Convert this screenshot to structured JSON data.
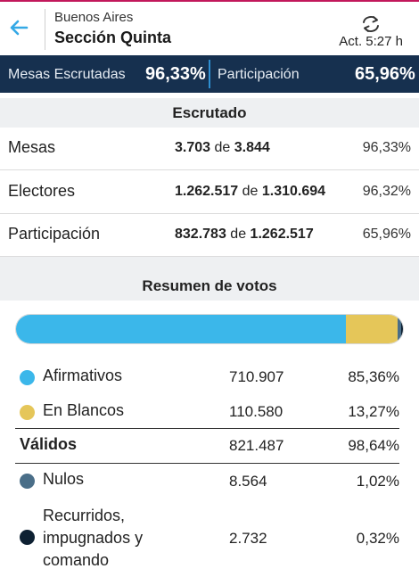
{
  "header": {
    "province": "Buenos Aires",
    "section": "Sección Quinta",
    "updated": "Act. 5:27 h"
  },
  "summary": {
    "mesas_label": "Mesas Escrutadas",
    "mesas_value": "96,33%",
    "participacion_label": "Participación",
    "participacion_value": "65,96%"
  },
  "escrutado": {
    "title": "Escrutado",
    "rows": [
      {
        "label": "Mesas",
        "value": "3.703",
        "of": "de",
        "total": "3.844",
        "pct": "96,33%"
      },
      {
        "label": "Electores",
        "value": "1.262.517",
        "of": "de",
        "total": "1.310.694",
        "pct": "96,32%"
      },
      {
        "label": "Participación",
        "value": "832.783",
        "of": "de",
        "total": "1.262.517",
        "pct": "65,96%"
      }
    ]
  },
  "resumen": {
    "title": "Resumen de votos",
    "bar_shares": {
      "afirmativos": 0.8536,
      "blancos": 0.1327,
      "nulos": 0.0102,
      "recurridos": 0.0032
    },
    "colors": {
      "afirmativos": "#3bb7ea",
      "blancos": "#e5c659",
      "nulos": "#4a6e88",
      "recurridos": "#0d2032"
    },
    "rows": [
      {
        "name": "Afirmativos",
        "votes": "710.907",
        "pct": "85,36%"
      },
      {
        "name": "En Blancos",
        "votes": "110.580",
        "pct": "13,27%"
      },
      {
        "name": "Válidos",
        "votes": "821.487",
        "pct": "98,64%"
      },
      {
        "name": "Nulos",
        "votes": "8.564",
        "pct": "1,02%"
      },
      {
        "name_lines": [
          "Recurridos,",
          "impugnados y",
          "comando"
        ],
        "votes": "2.732",
        "pct": "0,32%"
      }
    ]
  }
}
